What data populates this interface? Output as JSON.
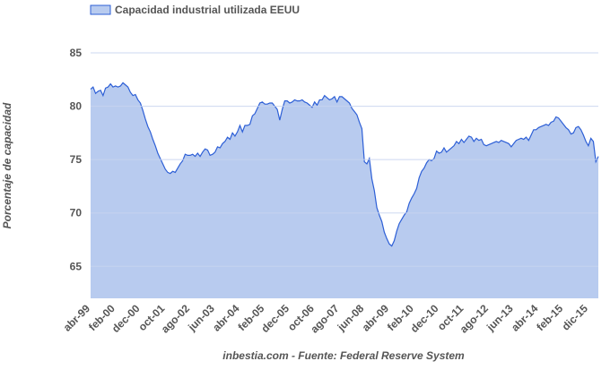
{
  "chart_data": {
    "type": "area",
    "legend": "top-left",
    "ylabel": "Porcentaje de capacidad",
    "source": "inbestia.com - Fuente: Federal Reserve System",
    "ylim": [
      62,
      87
    ],
    "yticks": [
      65,
      70,
      75,
      80,
      85
    ],
    "grid": true,
    "categories": [
      "abr-99",
      null,
      null,
      null,
      null,
      null,
      null,
      null,
      null,
      null,
      "feb-00",
      null,
      null,
      null,
      null,
      null,
      null,
      null,
      null,
      null,
      "dec-00",
      null,
      null,
      null,
      null,
      null,
      null,
      null,
      null,
      null,
      "oct-01",
      null,
      null,
      null,
      null,
      null,
      null,
      null,
      null,
      null,
      "ago-02",
      null,
      null,
      null,
      null,
      null,
      null,
      null,
      null,
      null,
      "jun-03",
      null,
      null,
      null,
      null,
      null,
      null,
      null,
      null,
      null,
      "abr-04",
      null,
      null,
      null,
      null,
      null,
      null,
      null,
      null,
      null,
      "feb-05",
      null,
      null,
      null,
      null,
      null,
      null,
      null,
      null,
      null,
      "dec-05",
      null,
      null,
      null,
      null,
      null,
      null,
      null,
      null,
      null,
      "oct-06",
      null,
      null,
      null,
      null,
      null,
      null,
      null,
      null,
      null,
      "ago-07",
      null,
      null,
      null,
      null,
      null,
      null,
      null,
      null,
      null,
      "jun-08",
      null,
      null,
      null,
      null,
      null,
      null,
      null,
      null,
      null,
      "abr-09",
      null,
      null,
      null,
      null,
      null,
      null,
      null,
      null,
      null,
      "feb-10",
      null,
      null,
      null,
      null,
      null,
      null,
      null,
      null,
      null,
      "dec-10",
      null,
      null,
      null,
      null,
      null,
      null,
      null,
      null,
      null,
      "oct-11",
      null,
      null,
      null,
      null,
      null,
      null,
      null,
      null,
      null,
      "ago-12",
      null,
      null,
      null,
      null,
      null,
      null,
      null,
      null,
      null,
      "jun-13",
      null,
      null,
      null,
      null,
      null,
      null,
      null,
      null,
      null,
      "abr-14",
      null,
      null,
      null,
      null,
      null,
      null,
      null,
      null,
      null,
      "feb-15",
      null,
      null,
      null,
      null,
      null,
      null,
      null,
      null,
      null,
      "dic-15",
      null,
      null,
      null,
      null
    ],
    "series": [
      {
        "name": "Capacidad industrial utilizada EEUU",
        "color": "#2d5fd6",
        "fill": "#b8cbef",
        "values": [
          81.6,
          81.8,
          81.2,
          81.4,
          81.5,
          81.0,
          81.7,
          81.8,
          82.1,
          81.8,
          81.9,
          81.8,
          81.9,
          82.2,
          82.0,
          81.8,
          81.3,
          81.0,
          81.1,
          80.6,
          80.3,
          79.6,
          78.8,
          78.1,
          77.6,
          76.9,
          76.3,
          75.6,
          75.1,
          74.6,
          74.1,
          73.8,
          73.7,
          73.9,
          73.8,
          74.2,
          74.6,
          74.9,
          75.5,
          75.4,
          75.4,
          75.5,
          75.3,
          75.6,
          75.3,
          75.7,
          76.0,
          75.9,
          75.4,
          75.5,
          75.7,
          76.2,
          76.1,
          76.5,
          76.7,
          77.1,
          76.9,
          77.5,
          77.2,
          77.6,
          78.2,
          77.6,
          78.2,
          78.2,
          78.3,
          79.1,
          79.3,
          79.8,
          80.3,
          80.4,
          80.2,
          80.2,
          80.3,
          80.3,
          80.0,
          79.7,
          78.7,
          79.7,
          80.5,
          80.5,
          80.3,
          80.4,
          80.6,
          80.5,
          80.5,
          80.6,
          80.4,
          80.3,
          80.1,
          79.9,
          80.4,
          80.1,
          80.6,
          80.6,
          81.0,
          80.8,
          80.6,
          80.7,
          80.9,
          80.4,
          80.9,
          80.9,
          80.7,
          80.5,
          80.3,
          79.8,
          79.5,
          79.2,
          78.5,
          77.9,
          74.8,
          74.6,
          75.1,
          73.2,
          72.1,
          70.5,
          69.8,
          69.2,
          68.2,
          67.6,
          67.1,
          66.9,
          67.4,
          68.3,
          69.0,
          69.4,
          69.8,
          70.1,
          70.9,
          71.4,
          71.8,
          72.3,
          73.3,
          73.9,
          74.2,
          74.7,
          75.0,
          74.9,
          75.1,
          75.8,
          75.6,
          75.7,
          76.1,
          75.7,
          75.9,
          76.1,
          76.3,
          76.7,
          76.5,
          76.9,
          76.6,
          76.9,
          77.2,
          77.1,
          76.7,
          77.0,
          76.8,
          76.9,
          76.4,
          76.3,
          76.4,
          76.5,
          76.6,
          76.7,
          76.6,
          76.8,
          76.7,
          76.6,
          76.5,
          76.2,
          76.5,
          76.8,
          76.9,
          77.0,
          76.9,
          77.1,
          76.8,
          77.3,
          77.8,
          77.8,
          78.0,
          78.1,
          78.2,
          78.3,
          78.2,
          78.5,
          78.6,
          79.0,
          78.9,
          78.6,
          78.3,
          78.0,
          77.8,
          77.4,
          77.5,
          78.0,
          78.1,
          77.8,
          77.3,
          76.7,
          76.3,
          77.0,
          76.7,
          74.8,
          75.3
        ]
      }
    ]
  }
}
